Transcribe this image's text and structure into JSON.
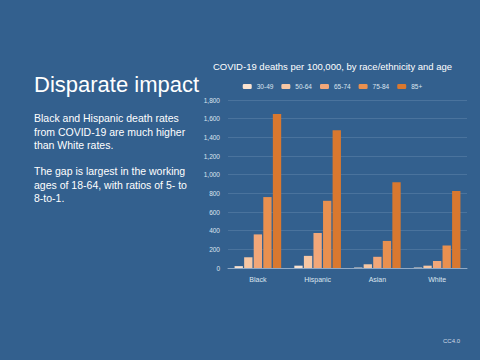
{
  "slide": {
    "heading": "Disparate impact",
    "text": [
      "Black and Hispanic death rates from COVID-19 are much higher than White rates.",
      "The gap is largest in the working ages of 18-64, with ratios of 5- to 8-to-1."
    ],
    "footer": "CC4.0"
  },
  "chart_data": {
    "type": "bar",
    "title": "COVID-19 deaths per 100,000, by race/ethnicity and age",
    "categories": [
      "Black",
      "Hispanic",
      "Asian",
      "White"
    ],
    "series": [
      {
        "name": "30-49",
        "color": "#fbe3d0",
        "values": [
          20,
          25,
          5,
          5
        ]
      },
      {
        "name": "50-64",
        "color": "#f7c7a4",
        "values": [
          115,
          130,
          40,
          25
        ]
      },
      {
        "name": "65-74",
        "color": "#f2a779",
        "values": [
          360,
          375,
          120,
          75
        ]
      },
      {
        "name": "75-84",
        "color": "#e9904f",
        "values": [
          760,
          720,
          290,
          240
        ]
      },
      {
        "name": "85+",
        "color": "#d9782f",
        "values": [
          1650,
          1475,
          920,
          825
        ]
      }
    ],
    "ylim": [
      0,
      1800
    ],
    "yticks": [
      0,
      200,
      400,
      600,
      800,
      {
        "value": 1000,
        "label": "1,000"
      },
      {
        "value": 1200,
        "label": "1,200"
      },
      {
        "value": 1400,
        "label": "1,400"
      },
      {
        "value": 1600,
        "label": "1,600"
      },
      {
        "value": 1800,
        "label": "1,800"
      }
    ],
    "grid": true,
    "legend": "top"
  }
}
